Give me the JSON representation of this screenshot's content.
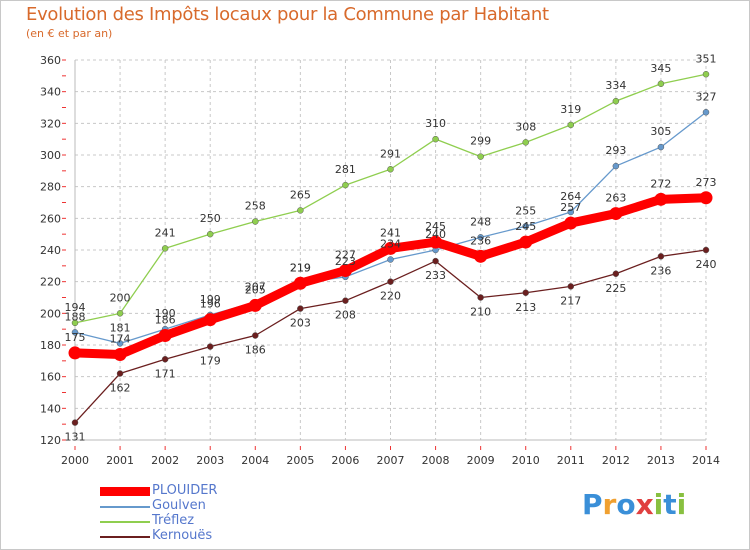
{
  "title": "Evolution des Impôts locaux pour la Commune par Habitant",
  "subtitle": "(en € et par an)",
  "brand": {
    "text": "Proxiti",
    "colors": [
      "#3a8fd8",
      "#f0a030",
      "#3a8fd8",
      "#e04040",
      "#88c040",
      "#3a8fd8",
      "#88c040"
    ]
  },
  "chart_data": {
    "type": "line",
    "x": [
      2000,
      2001,
      2002,
      2003,
      2004,
      2005,
      2006,
      2007,
      2008,
      2009,
      2010,
      2011,
      2012,
      2013,
      2014
    ],
    "ylim": [
      120,
      360
    ],
    "yticks": [
      120,
      140,
      160,
      180,
      200,
      220,
      240,
      260,
      280,
      300,
      320,
      340,
      360
    ],
    "grid": true,
    "legend": "bottom-left",
    "series": [
      {
        "name": "PLOUIDER",
        "color": "#ff0000",
        "values": [
          175,
          174,
          186,
          196,
          205,
          219,
          227,
          241,
          245,
          236,
          245,
          257,
          263,
          272,
          273
        ]
      },
      {
        "name": "Goulven",
        "color": "#6699cc",
        "values": [
          188,
          181,
          190,
          199,
          207,
          219,
          223,
          234,
          240,
          248,
          255,
          264,
          293,
          305,
          327
        ]
      },
      {
        "name": "Tréflez",
        "color": "#8fce4f",
        "values": [
          194,
          200,
          241,
          250,
          258,
          265,
          281,
          291,
          310,
          299,
          308,
          319,
          334,
          345,
          351
        ]
      },
      {
        "name": "Kernouës",
        "color": "#6b1f1f",
        "values": [
          131,
          162,
          171,
          179,
          186,
          203,
          208,
          220,
          233,
          210,
          213,
          217,
          225,
          236,
          240
        ]
      }
    ]
  }
}
